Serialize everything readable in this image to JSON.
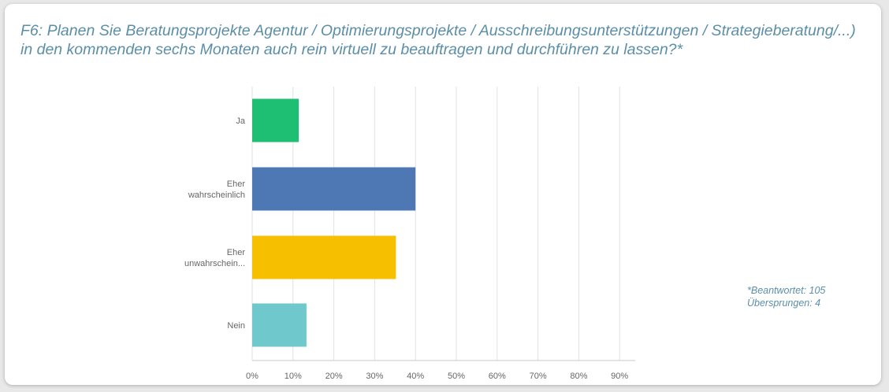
{
  "question": {
    "text": "F6: Planen Sie Beratungsprojekte Agentur / Optimierungsprojekte / Ausschreibungsunterstützungen / Strategieberatung/...) in den kommenden sechs Monaten auch rein virtuell zu beauftragen und durchführen zu lassen?*"
  },
  "stats": {
    "answered": "*Beantwortet: 105",
    "skipped": "Übersprungen: 4"
  },
  "colors": {
    "ja": "#1fbf73",
    "eher_wahrscheinlich": "#4e78b4",
    "eher_unwahrscheinlich": "#f6bf00",
    "nein": "#6ec8cc",
    "grid": "#e2e2e2",
    "axis": "#c8c8c8",
    "text": "#666666"
  },
  "chart_data": {
    "type": "bar",
    "orientation": "horizontal",
    "categories": [
      [
        "Ja"
      ],
      [
        "Eher",
        "wahrscheinlich"
      ],
      [
        "Eher",
        "unwahrschein..."
      ],
      [
        "Nein"
      ]
    ],
    "values": [
      11.4,
      40.0,
      35.2,
      13.3
    ],
    "xlim": [
      0,
      90
    ],
    "ticks": [
      "0%",
      "10%",
      "20%",
      "30%",
      "40%",
      "50%",
      "60%",
      "70%",
      "80%",
      "90%"
    ],
    "grid": true
  }
}
